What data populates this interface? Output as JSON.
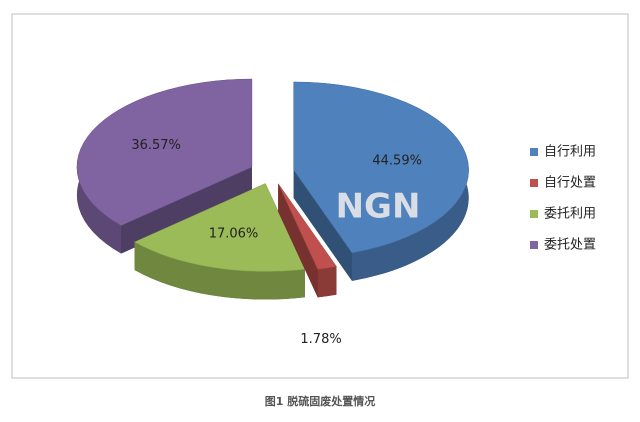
{
  "chart_data": {
    "type": "pie3d",
    "categories": [
      "自行利用",
      "自行处置",
      "委托利用",
      "委托处置"
    ],
    "values": [
      44.59,
      1.78,
      17.06,
      36.57
    ],
    "value_labels": [
      "44.59%",
      "1.78%",
      "17.06%",
      "36.57%"
    ],
    "colors": [
      "#4f81bd",
      "#c0504d",
      "#9bbb59",
      "#8064a2"
    ],
    "legend": "right",
    "watermark": "NGN",
    "caption": "图1  脱硫固废处置情况"
  }
}
